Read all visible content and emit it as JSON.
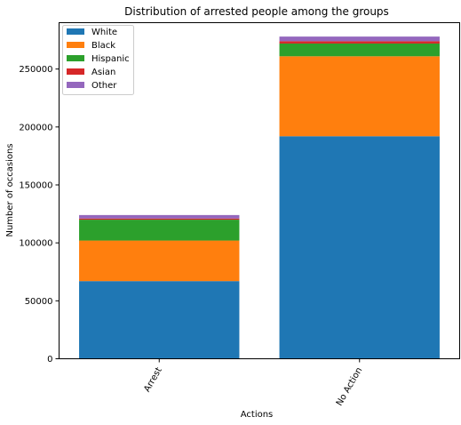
{
  "chart_data": {
    "type": "bar",
    "stacked": true,
    "title": "Distribution of arrested people among the groups",
    "xlabel": "Actions",
    "ylabel": "Number of occasions",
    "categories": [
      "Arrest",
      "No Action"
    ],
    "series": [
      {
        "name": "White",
        "color": "#1f77b4",
        "values": [
          67000,
          192000
        ]
      },
      {
        "name": "Black",
        "color": "#ff7f0e",
        "values": [
          35000,
          69000
        ]
      },
      {
        "name": "Hispanic",
        "color": "#2ca02c",
        "values": [
          18000,
          11000
        ]
      },
      {
        "name": "Asian",
        "color": "#d62728",
        "values": [
          1000,
          2000
        ]
      },
      {
        "name": "Other",
        "color": "#9467bd",
        "values": [
          3000,
          4000
        ]
      }
    ],
    "ylim": [
      0,
      290000
    ],
    "yticks": [
      0,
      50000,
      100000,
      150000,
      200000,
      250000
    ],
    "ytick_labels": [
      "0",
      "50000",
      "100000",
      "150000",
      "200000",
      "250000"
    ],
    "xtick_rotation": "60 degrees",
    "legend_position": "top-left",
    "grid": false
  }
}
